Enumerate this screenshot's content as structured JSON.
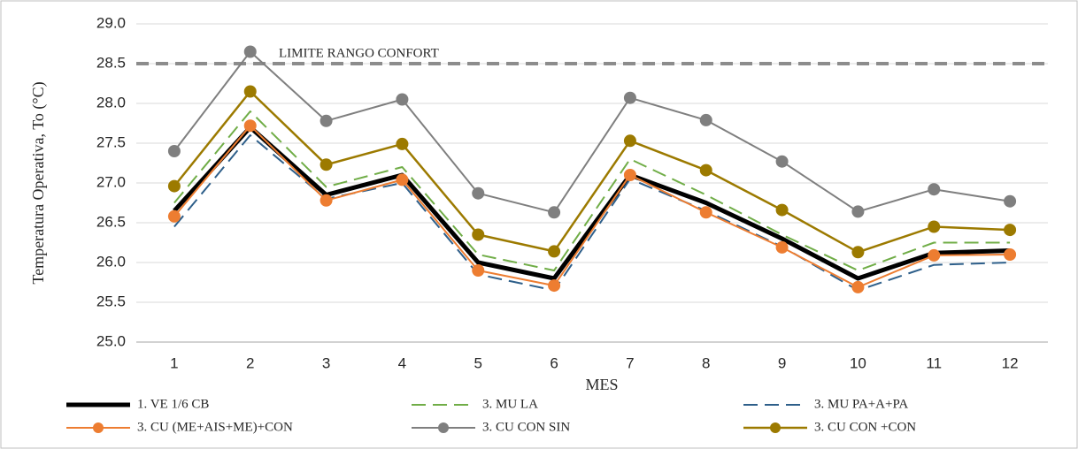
{
  "chart_data": {
    "type": "line",
    "y_label": "Temperatura Operativa, To (°C)",
    "x_label": "MES",
    "categories": [
      "1",
      "2",
      "3",
      "4",
      "5",
      "6",
      "7",
      "8",
      "9",
      "10",
      "11",
      "12"
    ],
    "ylim": [
      25.0,
      29.0
    ],
    "yticks": [
      {
        "value": 25.0,
        "label": "25.0"
      },
      {
        "value": 25.5,
        "label": "25.5"
      },
      {
        "value": 26.0,
        "label": "26.0"
      },
      {
        "value": 26.5,
        "label": "26.5"
      },
      {
        "value": 27.0,
        "label": "27.0"
      },
      {
        "value": 27.5,
        "label": "27.5"
      },
      {
        "value": 28.0,
        "label": "28.0"
      },
      {
        "value": 28.5,
        "label": "28.5"
      },
      {
        "value": 29.0,
        "label": "29.0"
      }
    ],
    "grid": true,
    "reference_line": {
      "value": 28.5,
      "label": "LIMITE RANGO CONFORT",
      "color": "#8c8c8c"
    },
    "legend": "bottom",
    "series": [
      {
        "name": "1. VE 1/6 CB",
        "color": "#000000",
        "width": 5,
        "dashed": false,
        "marker": false,
        "values": [
          26.65,
          27.7,
          26.85,
          27.1,
          26.0,
          25.8,
          27.1,
          26.75,
          26.3,
          25.8,
          26.12,
          26.15
        ]
      },
      {
        "name": "3. MU LA",
        "color": "#70ad47",
        "width": 2,
        "dashed": true,
        "marker": false,
        "values": [
          26.75,
          27.9,
          26.95,
          27.2,
          26.1,
          25.9,
          27.3,
          26.85,
          26.35,
          25.9,
          26.25,
          26.25
        ]
      },
      {
        "name": "3. MU PA+A+PA",
        "color": "#2e5f8a",
        "width": 2,
        "dashed": true,
        "marker": false,
        "values": [
          26.45,
          27.6,
          26.8,
          27.0,
          25.85,
          25.65,
          27.05,
          26.65,
          26.2,
          25.65,
          25.97,
          26.0
        ]
      },
      {
        "name": "3. CU (ME+AIS+ME)+CON",
        "color": "#ed7d31",
        "width": 2,
        "dashed": false,
        "marker": true,
        "values": [
          26.58,
          27.72,
          26.78,
          27.04,
          25.9,
          25.71,
          27.1,
          26.63,
          26.19,
          25.69,
          26.09,
          26.1
        ]
      },
      {
        "name": "3. CU CON SIN",
        "color": "#7f7f7f",
        "width": 2,
        "dashed": false,
        "marker": true,
        "values": [
          27.4,
          28.65,
          27.78,
          28.05,
          26.87,
          26.63,
          28.07,
          27.79,
          27.27,
          26.64,
          26.92,
          26.77
        ]
      },
      {
        "name": "3. CU CON +CON",
        "color": "#9c7a00",
        "width": 2.5,
        "dashed": false,
        "marker": true,
        "values": [
          26.96,
          28.15,
          27.23,
          27.49,
          26.35,
          26.14,
          27.53,
          27.16,
          26.66,
          26.13,
          26.45,
          26.41
        ]
      }
    ]
  }
}
